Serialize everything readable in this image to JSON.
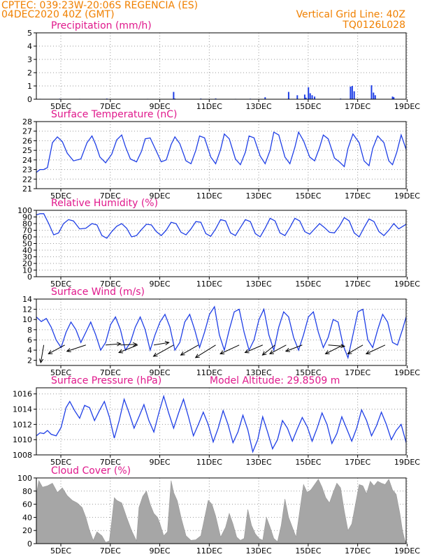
{
  "header": {
    "line1": "CPTEC:   039:23W-20:06S   REGENCIA (ES)",
    "line2": "04DEC2020 40Z (GMT)",
    "grid_note": "Vertical Grid Line: 40Z",
    "code": "TQ0126L028"
  },
  "colors": {
    "header": "#f08000",
    "panel_title": "#e0198c",
    "series": "#1f3fe6",
    "cloud_fill": "#a6a6a6",
    "wind_arrow": "#000000"
  },
  "chart_data": [
    {
      "id": "precip",
      "type": "bar",
      "title": "Precipitation (mm/h)",
      "x_day_range": [
        4.05,
        19.0
      ],
      "ylim": [
        0,
        5
      ],
      "yticks": [
        "0",
        "1",
        "2",
        "3",
        "4",
        "5"
      ],
      "xticks": [
        "5DEC",
        "7DEC",
        "9DEC",
        "11DEC",
        "13DEC",
        "15DEC",
        "17DEC",
        "19DEC"
      ],
      "grid": true,
      "points": [
        [
          4.2,
          0.03
        ],
        [
          5.0,
          0.04
        ],
        [
          5.8,
          0.03
        ],
        [
          6.9,
          0.05
        ],
        [
          8.55,
          0.03
        ],
        [
          9.6,
          0.55
        ],
        [
          9.65,
          0.05
        ],
        [
          10.7,
          0.05
        ],
        [
          11.3,
          0.06
        ],
        [
          12.1,
          0.03
        ],
        [
          12.7,
          0.04
        ],
        [
          13.3,
          0.15
        ],
        [
          14.25,
          0.55
        ],
        [
          14.6,
          0.3
        ],
        [
          14.9,
          0.35
        ],
        [
          14.95,
          0.12
        ],
        [
          15.05,
          0.9
        ],
        [
          15.12,
          0.45
        ],
        [
          15.2,
          0.3
        ],
        [
          15.3,
          0.2
        ],
        [
          16.35,
          0.05
        ],
        [
          16.75,
          0.95
        ],
        [
          16.82,
          1.0
        ],
        [
          16.9,
          0.6
        ],
        [
          17.6,
          1.05
        ],
        [
          17.68,
          0.5
        ],
        [
          17.75,
          0.3
        ],
        [
          18.45,
          0.2
        ],
        [
          18.5,
          0.15
        ]
      ]
    },
    {
      "id": "temp",
      "type": "line",
      "title": "Surface Temperature (nC)",
      "x_day_range": [
        4.05,
        19.0
      ],
      "ylim": [
        21,
        28
      ],
      "yticks": [
        "21",
        "22",
        "23",
        "24",
        "25",
        "26",
        "27",
        "28"
      ],
      "xticks": [
        "5DEC",
        "7DEC",
        "9DEC",
        "11DEC",
        "13DEC",
        "15DEC",
        "17DEC",
        "19DEC"
      ],
      "grid": true,
      "x": [
        4.05,
        4.2,
        4.35,
        4.5,
        4.7,
        4.9,
        5.1,
        5.3,
        5.55,
        5.85,
        6.1,
        6.3,
        6.45,
        6.62,
        6.85,
        7.1,
        7.3,
        7.5,
        7.65,
        7.85,
        8.1,
        8.3,
        8.45,
        8.65,
        8.85,
        9.1,
        9.3,
        9.5,
        9.65,
        9.85,
        10.1,
        10.3,
        10.5,
        10.65,
        10.85,
        11.1,
        11.3,
        11.5,
        11.65,
        11.85,
        12.1,
        12.3,
        12.5,
        12.65,
        12.85,
        13.1,
        13.3,
        13.5,
        13.65,
        13.85,
        14.1,
        14.3,
        14.5,
        14.65,
        14.85,
        15.1,
        15.3,
        15.5,
        15.65,
        15.85,
        16.1,
        16.3,
        16.5,
        16.65,
        16.85,
        17.1,
        17.3,
        17.5,
        17.65,
        17.85,
        18.1,
        18.3,
        18.45,
        18.62,
        18.8,
        19.0
      ],
      "values": [
        22.7,
        23.0,
        23.0,
        23.2,
        25.8,
        26.4,
        25.9,
        24.7,
        23.9,
        24.1,
        25.8,
        26.5,
        25.6,
        24.3,
        23.7,
        24.6,
        26.1,
        26.6,
        25.4,
        24.1,
        23.8,
        24.9,
        26.2,
        26.3,
        25.2,
        23.8,
        24.0,
        25.6,
        26.4,
        25.7,
        23.9,
        23.6,
        25.0,
        26.5,
        26.3,
        24.3,
        23.6,
        25.1,
        26.7,
        26.2,
        24.1,
        23.5,
        24.8,
        26.5,
        26.3,
        24.4,
        23.6,
        25.0,
        26.9,
        26.6,
        24.3,
        23.6,
        25.3,
        26.9,
        26.0,
        24.3,
        23.9,
        25.3,
        26.6,
        26.2,
        24.2,
        23.8,
        23.3,
        25.2,
        26.7,
        25.8,
        23.9,
        23.4,
        25.2,
        26.5,
        25.8,
        23.9,
        23.5,
        24.8,
        26.6,
        25.1
      ]
    },
    {
      "id": "rh",
      "type": "line",
      "title": "Relative Humidity (%)",
      "x_day_range": [
        4.05,
        19.0
      ],
      "ylim": [
        0,
        100
      ],
      "yticks": [
        "0",
        "10",
        "20",
        "30",
        "40",
        "50",
        "60",
        "70",
        "80",
        "90",
        "100"
      ],
      "xticks": [
        "5DEC",
        "7DEC",
        "9DEC",
        "11DEC",
        "13DEC",
        "15DEC",
        "17DEC",
        "19DEC"
      ],
      "grid": true,
      "x": [
        4.05,
        4.2,
        4.35,
        4.55,
        4.75,
        4.95,
        5.15,
        5.35,
        5.55,
        5.8,
        6.05,
        6.3,
        6.5,
        6.7,
        6.9,
        7.1,
        7.3,
        7.5,
        7.7,
        7.9,
        8.1,
        8.3,
        8.5,
        8.7,
        8.9,
        9.1,
        9.3,
        9.5,
        9.7,
        9.9,
        10.1,
        10.3,
        10.5,
        10.7,
        10.9,
        11.1,
        11.3,
        11.5,
        11.7,
        11.9,
        12.1,
        12.3,
        12.5,
        12.7,
        12.9,
        13.1,
        13.3,
        13.5,
        13.7,
        13.9,
        14.1,
        14.3,
        14.5,
        14.7,
        14.9,
        15.1,
        15.3,
        15.5,
        15.7,
        15.9,
        16.1,
        16.3,
        16.5,
        16.7,
        16.9,
        17.1,
        17.3,
        17.5,
        17.7,
        17.9,
        18.1,
        18.3,
        18.5,
        18.7,
        19.0
      ],
      "values": [
        93,
        95,
        95,
        80,
        63,
        66,
        80,
        86,
        84,
        72,
        73,
        80,
        78,
        62,
        58,
        68,
        76,
        80,
        73,
        60,
        62,
        71,
        79,
        78,
        68,
        62,
        70,
        82,
        80,
        67,
        63,
        72,
        83,
        82,
        65,
        61,
        72,
        86,
        84,
        66,
        62,
        74,
        86,
        83,
        65,
        60,
        73,
        88,
        84,
        66,
        62,
        74,
        88,
        84,
        68,
        64,
        72,
        80,
        74,
        67,
        66,
        76,
        89,
        84,
        66,
        60,
        74,
        87,
        83,
        68,
        62,
        70,
        80,
        72,
        79
      ]
    },
    {
      "id": "wind",
      "type": "line",
      "title": "Surface Wind (m/s)",
      "x_day_range": [
        4.05,
        19.0
      ],
      "ylim": [
        1,
        14
      ],
      "yticks": [
        "2",
        "4",
        "6",
        "8",
        "10",
        "12",
        "14"
      ],
      "xticks": [
        "5DEC",
        "7DEC",
        "9DEC",
        "11DEC",
        "13DEC",
        "15DEC",
        "17DEC",
        "19DEC"
      ],
      "grid": true,
      "x": [
        4.05,
        4.25,
        4.45,
        4.65,
        4.85,
        5.05,
        5.25,
        5.45,
        5.65,
        5.85,
        6.05,
        6.25,
        6.45,
        6.65,
        6.85,
        7.05,
        7.25,
        7.45,
        7.65,
        7.85,
        8.05,
        8.25,
        8.45,
        8.65,
        8.85,
        9.05,
        9.25,
        9.45,
        9.65,
        9.85,
        10.05,
        10.25,
        10.45,
        10.65,
        10.85,
        11.05,
        11.25,
        11.45,
        11.65,
        11.85,
        12.05,
        12.25,
        12.45,
        12.65,
        12.85,
        13.05,
        13.25,
        13.45,
        13.65,
        13.85,
        14.05,
        14.25,
        14.45,
        14.65,
        14.85,
        15.05,
        15.25,
        15.45,
        15.65,
        15.85,
        16.05,
        16.25,
        16.45,
        16.65,
        16.85,
        17.05,
        17.25,
        17.45,
        17.65,
        17.85,
        18.05,
        18.25,
        18.45,
        18.65,
        18.85,
        19.0
      ],
      "values": [
        10.5,
        9.6,
        10.2,
        8.5,
        6.0,
        4.5,
        7.5,
        9.5,
        8.0,
        5.5,
        7.5,
        9.5,
        7.0,
        4.0,
        5.5,
        9.0,
        10.5,
        8.0,
        4.0,
        5.5,
        8.5,
        10.5,
        8.0,
        4.0,
        7.0,
        9.5,
        11.0,
        8.5,
        4.0,
        5.5,
        9.5,
        11.0,
        8.0,
        4.5,
        7.5,
        11.0,
        12.5,
        7.0,
        4.0,
        8.0,
        11.5,
        12.0,
        7.5,
        4.0,
        6.0,
        10.0,
        12.0,
        7.0,
        4.0,
        8.5,
        11.5,
        10.5,
        6.5,
        4.0,
        7.0,
        10.5,
        11.5,
        7.5,
        4.5,
        6.5,
        10.0,
        9.5,
        5.0,
        2.5,
        7.0,
        11.5,
        12.0,
        6.0,
        4.5,
        8.0,
        11.0,
        9.5,
        5.5,
        5.0,
        8.0,
        10.5
      ],
      "wind_vectors": [
        {
          "day": 4.35,
          "u": -1.2,
          "v": -7.0
        },
        {
          "day": 5.2,
          "u": -6.5,
          "v": -3.5
        },
        {
          "day": 6.05,
          "u": -7.5,
          "v": -2.5
        },
        {
          "day": 6.85,
          "u": 6.0,
          "v": 0.5
        },
        {
          "day": 7.45,
          "u": 6.5,
          "v": 0.3
        },
        {
          "day": 8.15,
          "u": -7.5,
          "v": -3.0
        },
        {
          "day": 8.8,
          "u": 6.0,
          "v": 1.0
        },
        {
          "day": 9.6,
          "u": -8.0,
          "v": -4.5
        },
        {
          "day": 10.6,
          "u": -7.0,
          "v": -4.0
        },
        {
          "day": 11.3,
          "u": -8.0,
          "v": -5.0
        },
        {
          "day": 12.25,
          "u": -7.5,
          "v": -3.5
        },
        {
          "day": 13.2,
          "u": -7.0,
          "v": -3.0
        },
        {
          "day": 13.7,
          "u": -5.0,
          "v": -4.0
        },
        {
          "day": 14.15,
          "u": -6.5,
          "v": -3.5
        },
        {
          "day": 14.8,
          "u": -6.5,
          "v": -2.5
        },
        {
          "day": 15.85,
          "u": 6.5,
          "v": -0.5
        },
        {
          "day": 16.45,
          "u": -7.0,
          "v": -3.5
        },
        {
          "day": 17.25,
          "u": -6.0,
          "v": -3.5
        },
        {
          "day": 18.15,
          "u": -7.5,
          "v": -3.5
        }
      ]
    },
    {
      "id": "pressure",
      "type": "line",
      "title": "Surface Pressure (hPa)",
      "note": "Model Altitude: 29.8509 m",
      "x_day_range": [
        4.05,
        19.0
      ],
      "ylim": [
        1008,
        1016.8
      ],
      "yticks": [
        "1008",
        "1010",
        "1012",
        "1014",
        "1016"
      ],
      "xticks": [
        "5DEC",
        "7DEC",
        "9DEC",
        "11DEC",
        "13DEC",
        "15DEC",
        "17DEC",
        "19DEC"
      ],
      "grid": true,
      "x": [
        4.05,
        4.2,
        4.35,
        4.5,
        4.65,
        4.85,
        5.05,
        5.25,
        5.4,
        5.6,
        5.8,
        6.0,
        6.2,
        6.4,
        6.6,
        6.8,
        7.0,
        7.2,
        7.4,
        7.6,
        7.8,
        8.0,
        8.2,
        8.4,
        8.6,
        8.8,
        9.0,
        9.2,
        9.4,
        9.6,
        9.8,
        10.0,
        10.2,
        10.4,
        10.6,
        10.8,
        11.0,
        11.2,
        11.4,
        11.6,
        11.8,
        12.0,
        12.2,
        12.4,
        12.6,
        12.8,
        13.0,
        13.2,
        13.4,
        13.6,
        13.8,
        14.0,
        14.2,
        14.4,
        14.6,
        14.8,
        15.0,
        15.2,
        15.4,
        15.6,
        15.8,
        16.0,
        16.2,
        16.4,
        16.6,
        16.8,
        17.0,
        17.2,
        17.4,
        17.6,
        17.8,
        18.0,
        18.2,
        18.4,
        18.6,
        18.8,
        19.0
      ],
      "values": [
        1010.5,
        1010.9,
        1010.8,
        1011.2,
        1010.7,
        1010.5,
        1011.6,
        1014.2,
        1015.0,
        1013.8,
        1012.8,
        1014.5,
        1014.2,
        1012.5,
        1013.8,
        1015.0,
        1013.0,
        1010.2,
        1012.5,
        1015.3,
        1013.5,
        1011.5,
        1013.0,
        1014.6,
        1012.5,
        1011.0,
        1013.5,
        1015.7,
        1013.5,
        1011.5,
        1013.5,
        1015.3,
        1013.0,
        1010.5,
        1012.0,
        1013.6,
        1012.0,
        1009.7,
        1011.5,
        1013.8,
        1012.0,
        1009.6,
        1011.0,
        1013.2,
        1011.3,
        1008.4,
        1010.0,
        1013.0,
        1011.0,
        1008.8,
        1010.0,
        1012.5,
        1011.5,
        1009.8,
        1011.4,
        1012.9,
        1011.7,
        1009.8,
        1011.5,
        1013.5,
        1012.0,
        1009.5,
        1010.8,
        1013.0,
        1011.4,
        1009.8,
        1011.5,
        1013.9,
        1012.5,
        1010.5,
        1011.8,
        1013.6,
        1012.0,
        1010.0,
        1011.2,
        1012.0,
        1009.6
      ]
    },
    {
      "id": "cloud",
      "type": "area",
      "title": "Cloud Cover (%)",
      "x_day_range": [
        4.05,
        19.0
      ],
      "ylim": [
        0,
        100
      ],
      "yticks": [
        "0",
        "20",
        "40",
        "60",
        "80",
        "100"
      ],
      "xticks": [
        "5DEC",
        "7DEC",
        "9DEC",
        "11DEC",
        "13DEC",
        "15DEC",
        "17DEC",
        "19DEC"
      ],
      "grid": true,
      "x": [
        4.05,
        4.15,
        4.3,
        4.5,
        4.7,
        4.9,
        5.1,
        5.3,
        5.5,
        5.7,
        5.9,
        6.05,
        6.2,
        6.35,
        6.5,
        6.7,
        6.85,
        7.0,
        7.1,
        7.2,
        7.3,
        7.5,
        7.7,
        7.9,
        8.1,
        8.2,
        8.35,
        8.5,
        8.65,
        8.8,
        8.95,
        9.05,
        9.2,
        9.35,
        9.5,
        9.6,
        9.75,
        9.9,
        10.1,
        10.3,
        10.5,
        10.7,
        10.9,
        11.0,
        11.15,
        11.3,
        11.5,
        11.7,
        11.85,
        12.0,
        12.15,
        12.3,
        12.45,
        12.6,
        12.75,
        12.9,
        13.05,
        13.2,
        13.35,
        13.5,
        13.65,
        13.8,
        13.95,
        14.1,
        14.25,
        14.4,
        14.55,
        14.7,
        14.85,
        15.0,
        15.15,
        15.3,
        15.45,
        15.6,
        15.75,
        15.9,
        16.05,
        16.2,
        16.35,
        16.5,
        16.65,
        16.8,
        16.95,
        17.1,
        17.25,
        17.4,
        17.55,
        17.7,
        17.85,
        18.0,
        18.15,
        18.3,
        18.45,
        18.6,
        18.75,
        18.85,
        18.95,
        19.0
      ],
      "values": [
        75,
        96,
        86,
        88,
        92,
        78,
        85,
        73,
        66,
        62,
        55,
        40,
        20,
        5,
        18,
        12,
        2,
        4,
        35,
        70,
        66,
        62,
        40,
        20,
        4,
        55,
        72,
        80,
        60,
        46,
        40,
        30,
        12,
        18,
        96,
        78,
        65,
        40,
        12,
        5,
        6,
        12,
        48,
        66,
        60,
        42,
        10,
        25,
        46,
        30,
        10,
        5,
        8,
        52,
        28,
        15,
        8,
        5,
        40,
        25,
        8,
        3,
        28,
        68,
        40,
        25,
        10,
        50,
        90,
        78,
        82,
        90,
        98,
        86,
        70,
        62,
        78,
        92,
        85,
        50,
        20,
        30,
        60,
        90,
        88,
        76,
        95,
        88,
        95,
        92,
        90,
        98,
        82,
        75,
        45,
        20,
        5,
        2
      ]
    }
  ]
}
